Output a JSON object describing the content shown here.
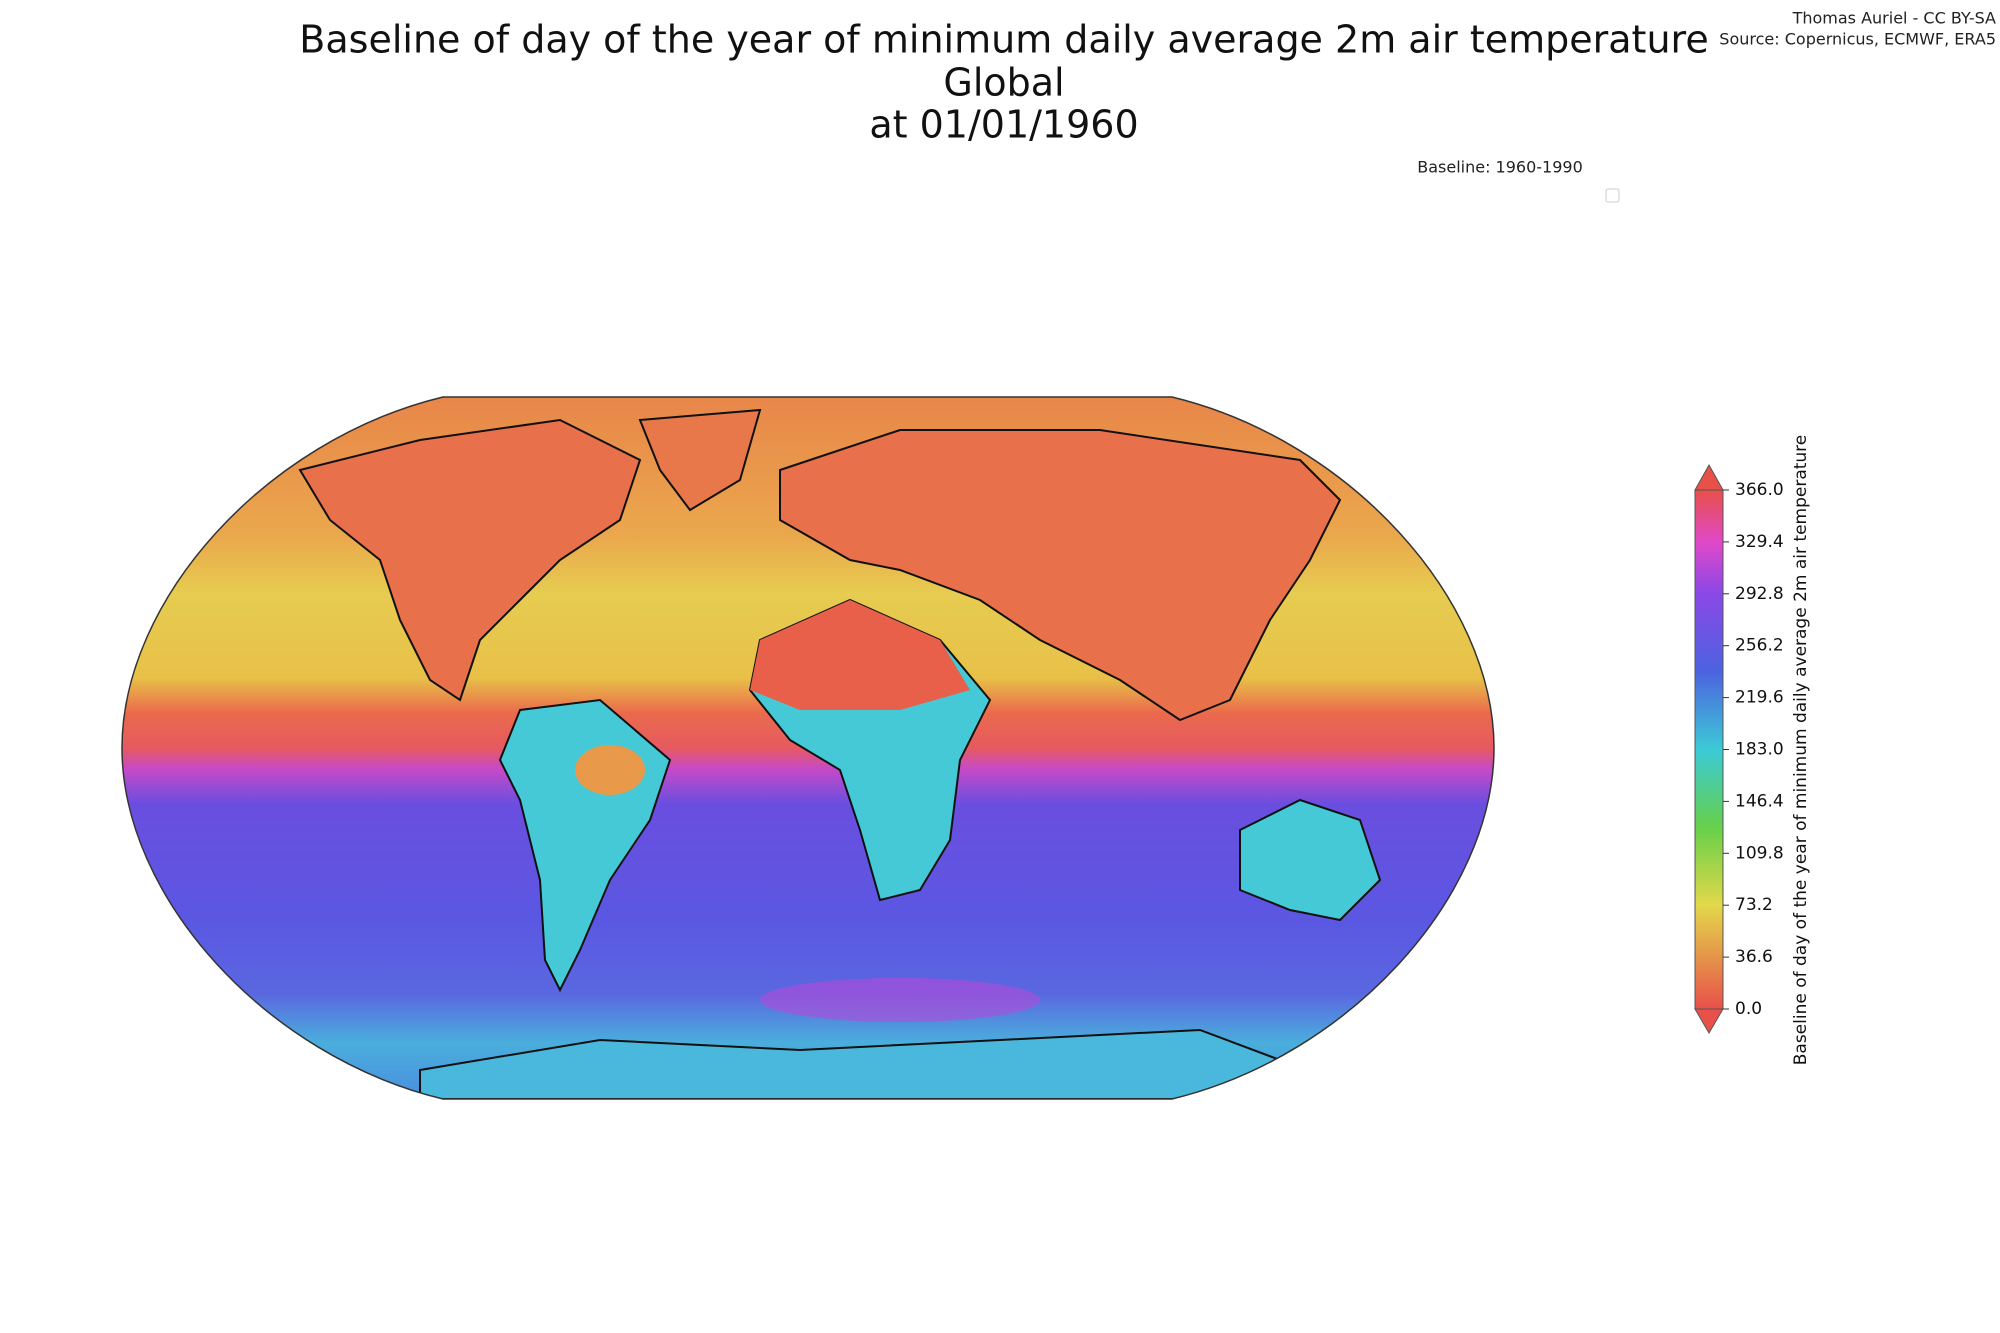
{
  "title": [
    "Baseline of day of the year of minimum daily average 2m air temperature",
    "Global",
    "at 01/01/1960"
  ],
  "credit": [
    "Thomas Auriel - CC BY-SA",
    "Source: Copernicus, ECMWF, ERA5"
  ],
  "baseline": "Baseline: 1960-1990",
  "colorbar": {
    "label": "Baseline of day of the year of minimum daily average 2m air temperature",
    "lim": [
      0,
      366
    ],
    "ticks": [
      {
        "value": 0,
        "label": "0.0"
      },
      36.6,
      73.2,
      109.8,
      146.4,
      {
        "value": 183,
        "label": "183.0"
      },
      219.6,
      256.2,
      292.8,
      329.4,
      {
        "value": 366,
        "label": "366.0"
      }
    ]
  }
}
